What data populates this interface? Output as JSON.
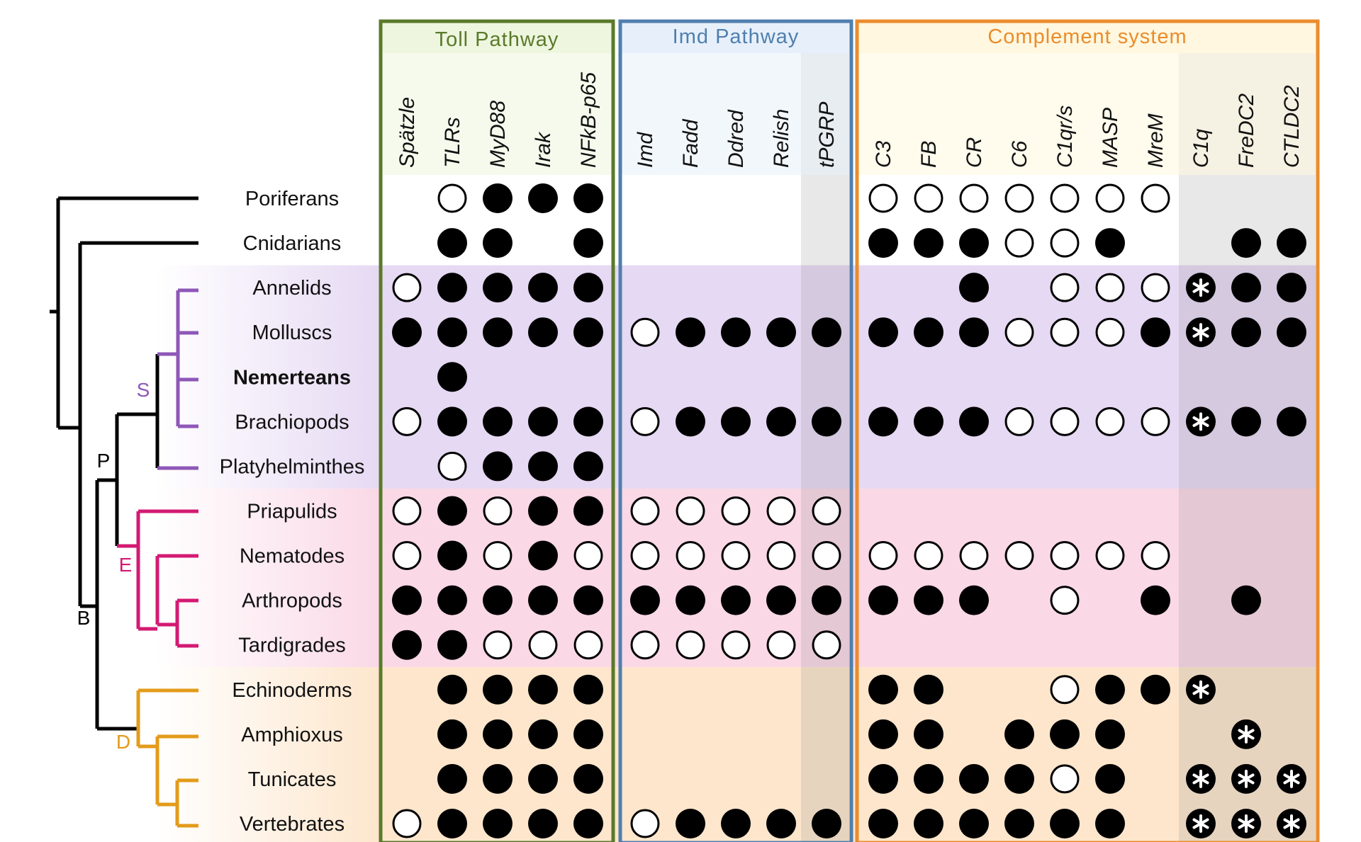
{
  "colors": {
    "S": "#8e57b8",
    "E": "#d31a73",
    "D": "#e39b1a",
    "toll": "#5a7a2a",
    "imd": "#4f7fae",
    "comp": "#ea8c2c",
    "toll_head": "#eef6df",
    "imd_head": "#e7f0fa",
    "comp_head": "#fff7df",
    "band_S": "#e6d9f3",
    "band_E": "#fad8e6",
    "band_D": "#fde6cc",
    "grey": "#8a8a8a"
  },
  "panels": [
    {
      "title": "Toll Pathway",
      "genes": [
        "Spätzle",
        "TLRs",
        "MyD88",
        "Irak",
        "NFkB-p65"
      ]
    },
    {
      "title": "Imd Pathway",
      "genes": [
        "Imd",
        "Fadd",
        "Ddred",
        "Relish",
        "tPGRP"
      ]
    },
    {
      "title": "Complement system",
      "genes": [
        "C3",
        "FB",
        "CR",
        "C6",
        "C1qr/s",
        "MASP",
        "MreM",
        "C1q",
        "FreDC2",
        "CTLDC2"
      ]
    }
  ],
  "clades": [
    {
      "label": "S",
      "key": "S"
    },
    {
      "label": "E",
      "key": "E"
    },
    {
      "label": "D",
      "key": "D"
    }
  ],
  "nodes": [
    "P",
    "B"
  ],
  "taxa": [
    {
      "name": "Poriferans",
      "group": "none",
      "bold": false,
      "cells": [
        "",
        "o",
        "f",
        "f",
        "f",
        "",
        "",
        "",
        "",
        "",
        "o",
        "o",
        "o",
        "o",
        "o",
        "o",
        "o",
        "",
        "",
        ""
      ]
    },
    {
      "name": "Cnidarians",
      "group": "none",
      "bold": false,
      "cells": [
        "",
        "f",
        "f",
        "",
        "f",
        "",
        "",
        "",
        "",
        "",
        "f",
        "f",
        "f",
        "o",
        "o",
        "f",
        "",
        "",
        "f",
        "f"
      ]
    },
    {
      "name": "Annelids",
      "group": "S",
      "bold": false,
      "cells": [
        "o",
        "f",
        "f",
        "f",
        "f",
        "",
        "",
        "",
        "",
        "",
        "",
        "",
        "f",
        "",
        "o",
        "o",
        "o",
        "s",
        "f",
        "f"
      ]
    },
    {
      "name": "Molluscs",
      "group": "S",
      "bold": false,
      "cells": [
        "f",
        "f",
        "f",
        "f",
        "f",
        "o",
        "f",
        "f",
        "f",
        "f",
        "f",
        "f",
        "f",
        "o",
        "o",
        "o",
        "f",
        "s",
        "f",
        "f"
      ]
    },
    {
      "name": "Nemerteans",
      "group": "S",
      "bold": true,
      "cells": [
        "",
        "f",
        "",
        "",
        "",
        "",
        "",
        "",
        "",
        "",
        "",
        "",
        "",
        "",
        "",
        "",
        "",
        "",
        "",
        ""
      ]
    },
    {
      "name": "Brachiopods",
      "group": "S",
      "bold": false,
      "cells": [
        "o",
        "f",
        "f",
        "f",
        "f",
        "o",
        "f",
        "f",
        "f",
        "f",
        "f",
        "f",
        "f",
        "o",
        "o",
        "o",
        "o",
        "s",
        "f",
        "f"
      ]
    },
    {
      "name": "Platyhelminthes",
      "group": "S",
      "bold": false,
      "cells": [
        "",
        "o",
        "f",
        "f",
        "f",
        "",
        "",
        "",
        "",
        "",
        "",
        "",
        "",
        "",
        "",
        "",
        "",
        "",
        "",
        ""
      ]
    },
    {
      "name": "Priapulids",
      "group": "E",
      "bold": false,
      "cells": [
        "o",
        "f",
        "o",
        "f",
        "f",
        "o",
        "o",
        "o",
        "o",
        "o",
        "",
        "",
        "",
        "",
        "",
        "",
        "",
        "",
        "",
        ""
      ]
    },
    {
      "name": "Nematodes",
      "group": "E",
      "bold": false,
      "cells": [
        "o",
        "f",
        "o",
        "f",
        "o",
        "o",
        "o",
        "o",
        "o",
        "o",
        "o",
        "o",
        "o",
        "o",
        "o",
        "o",
        "o",
        "",
        "",
        ""
      ]
    },
    {
      "name": "Arthropods",
      "group": "E",
      "bold": false,
      "cells": [
        "f",
        "f",
        "f",
        "f",
        "f",
        "f",
        "f",
        "f",
        "f",
        "f",
        "f",
        "f",
        "f",
        "",
        "o",
        "",
        "f",
        "",
        "f",
        ""
      ]
    },
    {
      "name": "Tardigrades",
      "group": "E",
      "bold": false,
      "cells": [
        "f",
        "f",
        "o",
        "o",
        "o",
        "o",
        "o",
        "o",
        "o",
        "o",
        "",
        "",
        "",
        "",
        "",
        "",
        "",
        "",
        "",
        ""
      ]
    },
    {
      "name": "Echinoderms",
      "group": "D",
      "bold": false,
      "cells": [
        "",
        "f",
        "f",
        "f",
        "f",
        "",
        "",
        "",
        "",
        "",
        "f",
        "f",
        "",
        "",
        "o",
        "f",
        "f",
        "s",
        "",
        ""
      ]
    },
    {
      "name": "Amphioxus",
      "group": "D",
      "bold": false,
      "cells": [
        "",
        "f",
        "f",
        "f",
        "f",
        "",
        "",
        "",
        "",
        "",
        "f",
        "f",
        "",
        "f",
        "f",
        "f",
        "",
        "",
        "s",
        ""
      ]
    },
    {
      "name": "Tunicates",
      "group": "D",
      "bold": false,
      "cells": [
        "",
        "f",
        "f",
        "f",
        "f",
        "",
        "",
        "",
        "",
        "",
        "f",
        "f",
        "f",
        "f",
        "o",
        "f",
        "",
        "s",
        "s",
        "s"
      ]
    },
    {
      "name": "Vertebrates",
      "group": "D",
      "bold": false,
      "cells": [
        "o",
        "f",
        "f",
        "f",
        "f",
        "o",
        "f",
        "f",
        "f",
        "f",
        "f",
        "f",
        "f",
        "f",
        "f",
        "f",
        "",
        "s",
        "s",
        "s"
      ]
    }
  ]
}
